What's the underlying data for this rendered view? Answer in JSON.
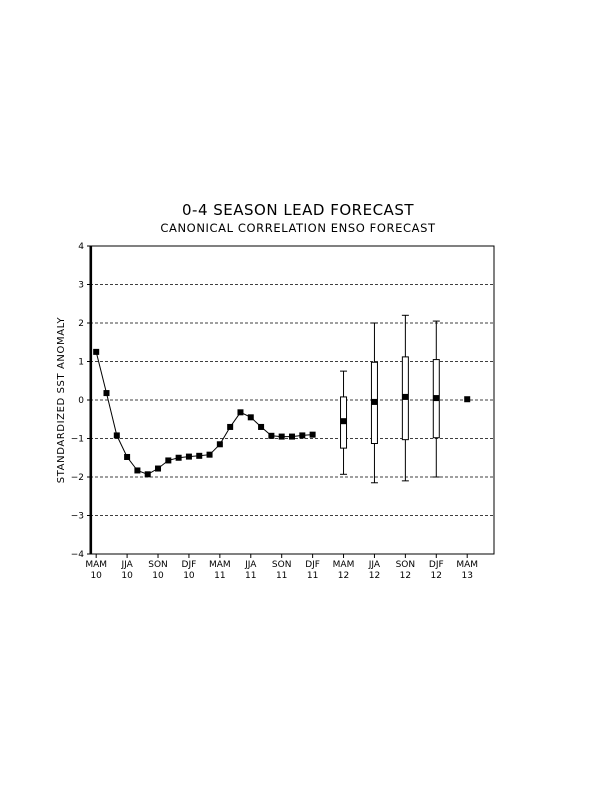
{
  "chart_data": {
    "type": "line",
    "title": "0-4 SEASON LEAD FORECAST",
    "subtitle": "CANONICAL CORRELATION ENSO FORECAST",
    "ylabel": "STANDARDIZED SST ANOMALY",
    "xlabel": "",
    "ylim": [
      -4,
      4
    ],
    "yticks": [
      -4,
      -3,
      -2,
      -1,
      0,
      1,
      2,
      3,
      4
    ],
    "ytick_labels": [
      "−4",
      "−3",
      "−2",
      "−1",
      "0",
      "1",
      "2",
      "3",
      "4"
    ],
    "grid": "horizontal-dashed",
    "x_tick_labels": [
      {
        "index": 0,
        "season": "MAM",
        "year": "10"
      },
      {
        "index": 3,
        "season": "JJA",
        "year": "10"
      },
      {
        "index": 6,
        "season": "SON",
        "year": "10"
      },
      {
        "index": 9,
        "season": "DJF",
        "year": "10"
      },
      {
        "index": 12,
        "season": "MAM",
        "year": "11"
      },
      {
        "index": 15,
        "season": "JJA",
        "year": "11"
      },
      {
        "index": 18,
        "season": "SON",
        "year": "11"
      },
      {
        "index": 21,
        "season": "DJF",
        "year": "11"
      },
      {
        "index": 24,
        "season": "MAM",
        "year": "12"
      },
      {
        "index": 27,
        "season": "JJA",
        "year": "12"
      },
      {
        "index": 30,
        "season": "SON",
        "year": "12"
      },
      {
        "index": 33,
        "season": "DJF",
        "year": "12"
      },
      {
        "index": 36,
        "season": "MAM",
        "year": "13"
      }
    ],
    "x_range": [
      -0.6,
      38.6
    ],
    "observed": {
      "x": [
        0,
        1,
        2,
        3,
        4,
        5,
        6,
        7,
        8,
        9,
        10,
        11,
        12,
        13,
        14,
        15,
        16,
        17,
        18,
        19,
        20,
        21
      ],
      "y": [
        1.25,
        0.18,
        -0.92,
        -1.48,
        -1.83,
        -1.93,
        -1.78,
        -1.57,
        -1.5,
        -1.47,
        -1.45,
        -1.42,
        -1.15,
        -0.7,
        -0.32,
        -0.45,
        -0.7,
        -0.93,
        -0.95,
        -0.95,
        -0.92,
        -0.9
      ]
    },
    "forecast": [
      {
        "x": 24,
        "median": -0.55,
        "box_low": -1.25,
        "box_high": 0.08,
        "whisker_low": -1.93,
        "whisker_high": 0.75
      },
      {
        "x": 27,
        "median": -0.05,
        "box_low": -1.13,
        "box_high": 0.98,
        "whisker_low": -2.15,
        "whisker_high": 2.0
      },
      {
        "x": 30,
        "median": 0.08,
        "box_low": -1.03,
        "box_high": 1.12,
        "whisker_low": -2.1,
        "whisker_high": 2.2
      },
      {
        "x": 33,
        "median": 0.05,
        "box_low": -0.98,
        "box_high": 1.05,
        "whisker_low": -2.0,
        "whisker_high": 2.05
      },
      {
        "x": 36,
        "median": 0.02
      }
    ]
  }
}
